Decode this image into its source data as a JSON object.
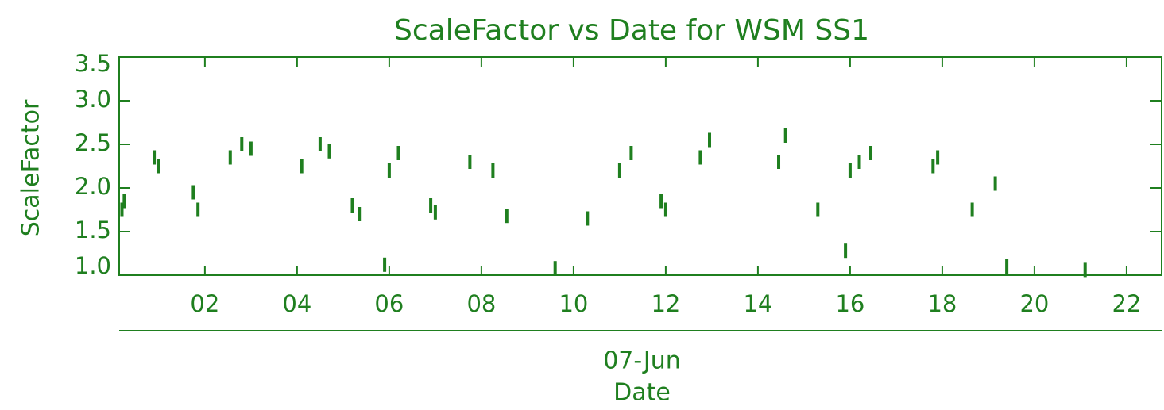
{
  "chart_data": {
    "type": "scatter",
    "title": "ScaleFactor vs Date for WSM SS1",
    "xlabel": "Date",
    "x_sublabel": "07-Jun",
    "ylabel": "ScaleFactor",
    "color": "#1f7f1f",
    "xlim": [
      0.14,
      22.76
    ],
    "ylim": [
      1.0,
      3.5
    ],
    "xticks": [
      {
        "value": 2,
        "label": "02"
      },
      {
        "value": 4,
        "label": "04"
      },
      {
        "value": 6,
        "label": "06"
      },
      {
        "value": 8,
        "label": "08"
      },
      10,
      12,
      14,
      16,
      18,
      20,
      22
    ],
    "yticks": [
      {
        "value": 1.0,
        "label": "1.0"
      },
      1.5,
      {
        "value": 2.0,
        "label": "2.0"
      },
      2.5,
      {
        "value": 3.0,
        "label": "3.0"
      },
      3.5
    ],
    "x": [
      0.2,
      0.25,
      0.9,
      1.0,
      1.75,
      1.85,
      2.55,
      2.8,
      3.0,
      4.1,
      4.5,
      4.7,
      5.2,
      5.35,
      5.9,
      6.0,
      6.2,
      6.9,
      7.0,
      7.75,
      8.25,
      8.55,
      9.6,
      10.3,
      11.0,
      11.25,
      11.9,
      12.0,
      12.75,
      12.95,
      14.45,
      14.6,
      15.3,
      15.9,
      16.0,
      16.2,
      16.45,
      17.8,
      17.9,
      18.65,
      19.15,
      19.4,
      21.1
    ],
    "values": [
      1.75,
      1.85,
      2.35,
      2.25,
      1.95,
      1.75,
      2.35,
      2.5,
      2.45,
      2.25,
      2.5,
      2.42,
      1.8,
      1.7,
      1.12,
      2.2,
      2.4,
      1.8,
      1.72,
      2.3,
      2.2,
      1.68,
      1.08,
      1.65,
      2.2,
      2.4,
      1.85,
      1.75,
      2.35,
      2.55,
      2.3,
      2.6,
      1.75,
      1.28,
      2.2,
      2.3,
      2.4,
      2.25,
      2.35,
      1.75,
      2.05,
      1.1,
      1.06
    ]
  }
}
